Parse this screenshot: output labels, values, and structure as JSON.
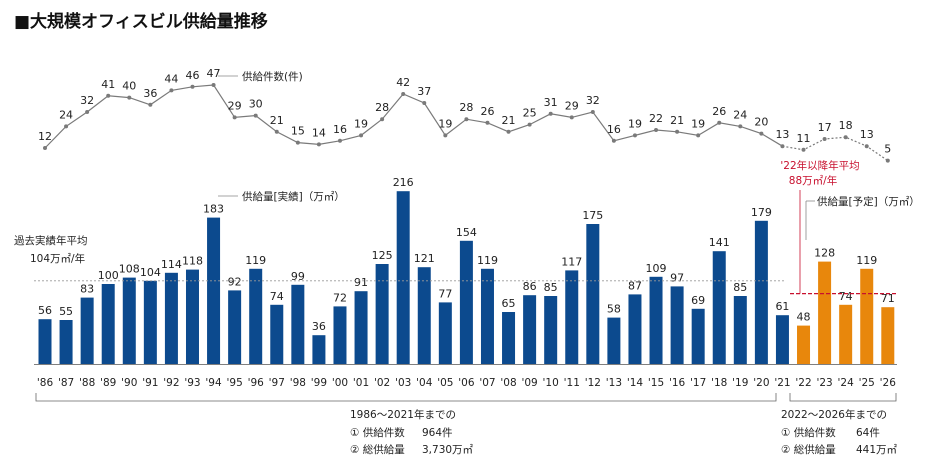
{
  "chart_data": {
    "type": "bar",
    "title": "■大規模オフィスビル供給量推移",
    "categories": [
      "'86",
      "'87",
      "'88",
      "'89",
      "'90",
      "'91",
      "'92",
      "'93",
      "'94",
      "'95",
      "'96",
      "'97",
      "'98",
      "'99",
      "'00",
      "'01",
      "'02",
      "'03",
      "'04",
      "'05",
      "'06",
      "'07",
      "'08",
      "'09",
      "'10",
      "'11",
      "'12",
      "'13",
      "'14",
      "'15",
      "'16",
      "'17",
      "'18",
      "'19",
      "'20",
      "'21",
      "'22",
      "'23",
      "'24",
      "'25",
      "'26"
    ],
    "series": [
      {
        "name": "供給量[実績]（万㎡）",
        "type": "bar",
        "color": "#0c4a8e",
        "values": [
          56,
          55,
          83,
          100,
          108,
          104,
          114,
          118,
          183,
          92,
          119,
          74,
          99,
          36,
          72,
          91,
          125,
          216,
          121,
          77,
          154,
          119,
          65,
          86,
          85,
          117,
          175,
          58,
          87,
          109,
          97,
          69,
          141,
          85,
          179,
          61,
          null,
          null,
          null,
          null,
          null
        ]
      },
      {
        "name": "供給量[予定]（万㎡）",
        "type": "bar",
        "color": "#e8870c",
        "values": [
          null,
          null,
          null,
          null,
          null,
          null,
          null,
          null,
          null,
          null,
          null,
          null,
          null,
          null,
          null,
          null,
          null,
          null,
          null,
          null,
          null,
          null,
          null,
          null,
          null,
          null,
          null,
          null,
          null,
          null,
          null,
          null,
          null,
          null,
          null,
          null,
          48,
          128,
          74,
          119,
          71
        ]
      },
      {
        "name": "供給件数（件）",
        "type": "line",
        "color": "#7a7a7a",
        "values": [
          12,
          24,
          32,
          41,
          40,
          36,
          44,
          46,
          47,
          29,
          30,
          21,
          15,
          14,
          16,
          19,
          28,
          42,
          37,
          19,
          28,
          26,
          21,
          25,
          31,
          29,
          32,
          16,
          19,
          22,
          21,
          19,
          26,
          24,
          20,
          13,
          11,
          17,
          18,
          13,
          5
        ]
      }
    ],
    "legend": {
      "count": "供給件数(件)",
      "actual": "供給量[実績]（万㎡）",
      "planned": "供給量[予定]（万㎡）"
    },
    "annotations": {
      "past_avg_line1": "過去実績年平均",
      "past_avg_line2": "104万㎡/年",
      "past_avg_value": 104,
      "future_avg_line1": "'22年以降年平均",
      "future_avg_line2": "88万㎡/年",
      "future_avg_value": 88
    },
    "summaries": {
      "past": {
        "title": "1986～2021年までの",
        "line1_label": "① 供給件数",
        "line1_value": "964件",
        "line2_label": "② 総供給量",
        "line2_value": "3,730万㎡"
      },
      "future": {
        "title": "2022～2026年までの",
        "line1_label": "① 供給件数",
        "line1_value": "64件",
        "line2_label": "② 総供給量",
        "line2_value": "441万㎡"
      }
    },
    "colors": {
      "actual": "#0c4a8e",
      "planned": "#e8870c",
      "line": "#7a7a7a",
      "future_avg": "#c8102e",
      "text": "#222222"
    }
  }
}
